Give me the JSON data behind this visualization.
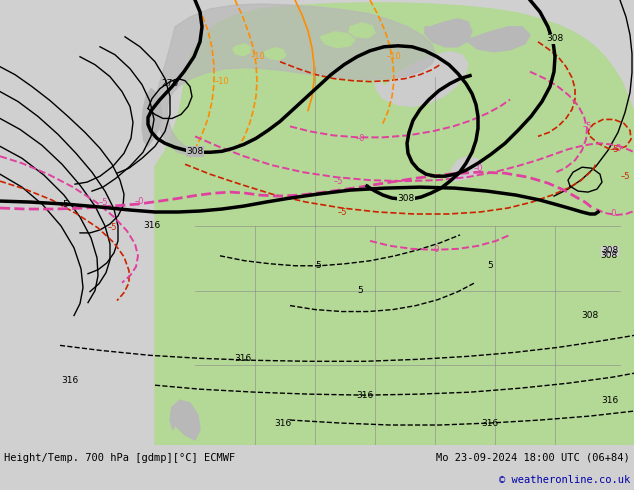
{
  "title_left": "Height/Temp. 700 hPa [gdmp][°C] ECMWF",
  "title_right": "Mo 23-09-2024 18:00 UTC (06+84)",
  "copyright": "© weatheronline.co.uk",
  "bg_color": "#d0d0d0",
  "land_green": "#b4d896",
  "land_gray": "#b8b8b8",
  "water_gray": "#cccccc",
  "black_color": "#000000",
  "pink_color": "#e040a0",
  "red_color": "#cc2200",
  "orange_color": "#ff8c00",
  "border_color": "#888888",
  "fig_width": 6.34,
  "fig_height": 4.9,
  "dpi": 100
}
